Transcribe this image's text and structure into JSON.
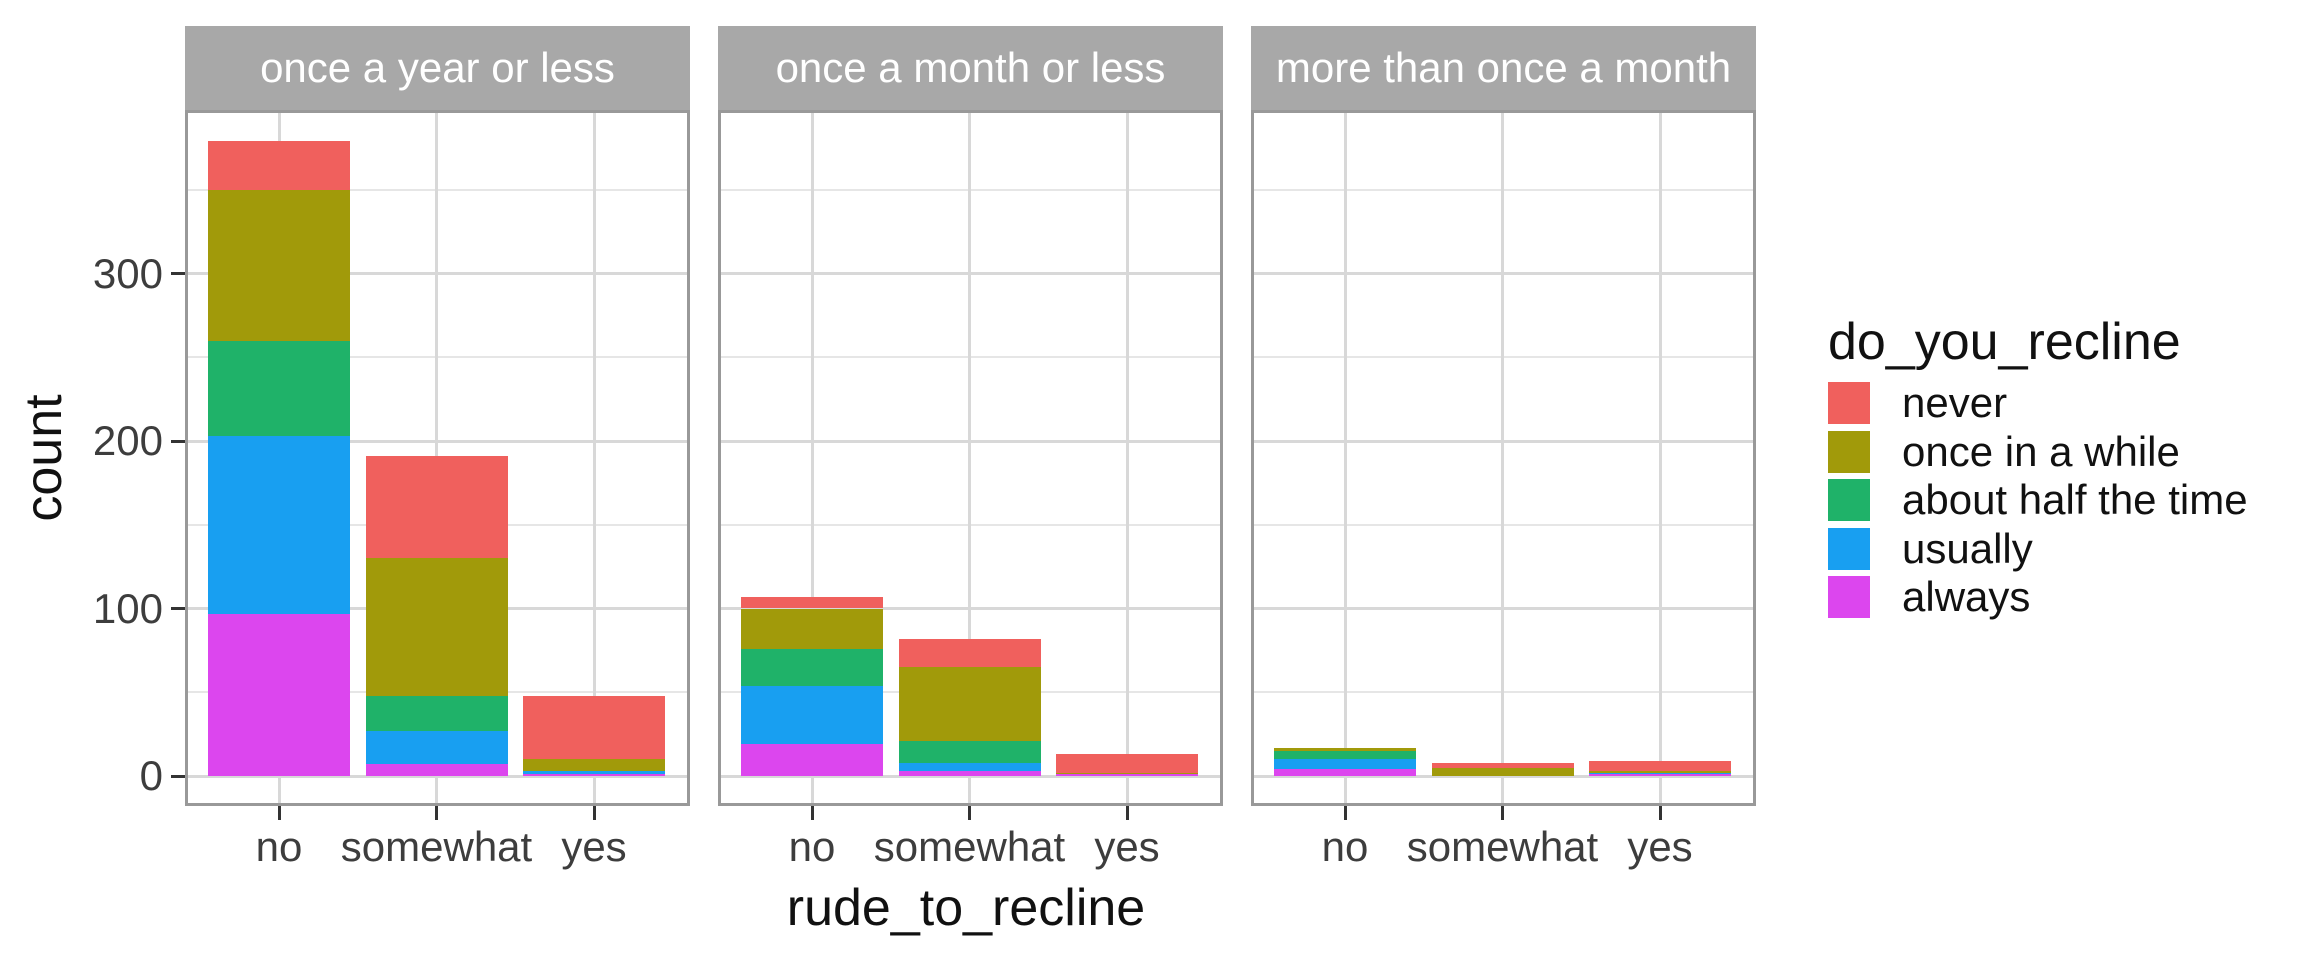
{
  "chart_data": {
    "type": "bar",
    "variant": "stacked-faceted",
    "title": "",
    "xlabel": "rude_to_recline",
    "ylabel": "count",
    "legend_title": "do_you_recline",
    "legend_position": "right",
    "facets": [
      "once a year or less",
      "once a month or less",
      "more than once a month"
    ],
    "categories": [
      "no",
      "somewhat",
      "yes"
    ],
    "stack_order_bottom_to_top": [
      "always",
      "usually",
      "about half the time",
      "once in a while",
      "never"
    ],
    "series": [
      {
        "name": "never",
        "color": "#F0605D",
        "values_by_facet": [
          [
            29,
            61,
            38
          ],
          [
            7,
            17,
            11
          ],
          [
            0,
            3,
            6
          ]
        ]
      },
      {
        "name": "once in a while",
        "color": "#A19A0A",
        "values_by_facet": [
          [
            90,
            82,
            7
          ],
          [
            24,
            44,
            1
          ],
          [
            2,
            5,
            1
          ]
        ]
      },
      {
        "name": "about half the time",
        "color": "#1FB269",
        "values_by_facet": [
          [
            57,
            21,
            0
          ],
          [
            22,
            13,
            0
          ],
          [
            5,
            0,
            0
          ]
        ]
      },
      {
        "name": "usually",
        "color": "#189FF1",
        "values_by_facet": [
          [
            106,
            20,
            2
          ],
          [
            35,
            5,
            0
          ],
          [
            6,
            0,
            1
          ]
        ]
      },
      {
        "name": "always",
        "color": "#DC46EE",
        "values_by_facet": [
          [
            97,
            7,
            1
          ],
          [
            19,
            3,
            1
          ],
          [
            4,
            0,
            1
          ]
        ]
      }
    ],
    "y_tick_labels": [
      "0",
      "100",
      "200",
      "300"
    ],
    "y_tick_values": [
      0,
      100,
      200,
      300
    ],
    "y_minor_values": [
      50,
      150,
      250,
      350
    ],
    "ylim": [
      -18,
      398
    ],
    "grid": true
  },
  "theme": {
    "background": "#FFFFFF",
    "strip_background": "#A8A8A8",
    "strip_text_color": "#FFFFFF",
    "panel_border": "#999999",
    "grid_major": "#D8D8D8",
    "grid_minor": "#E6E6E6",
    "axis_text_color": "#3D3D3D",
    "axis_title_color": "#111111",
    "tick_mark_color": "#333333"
  }
}
